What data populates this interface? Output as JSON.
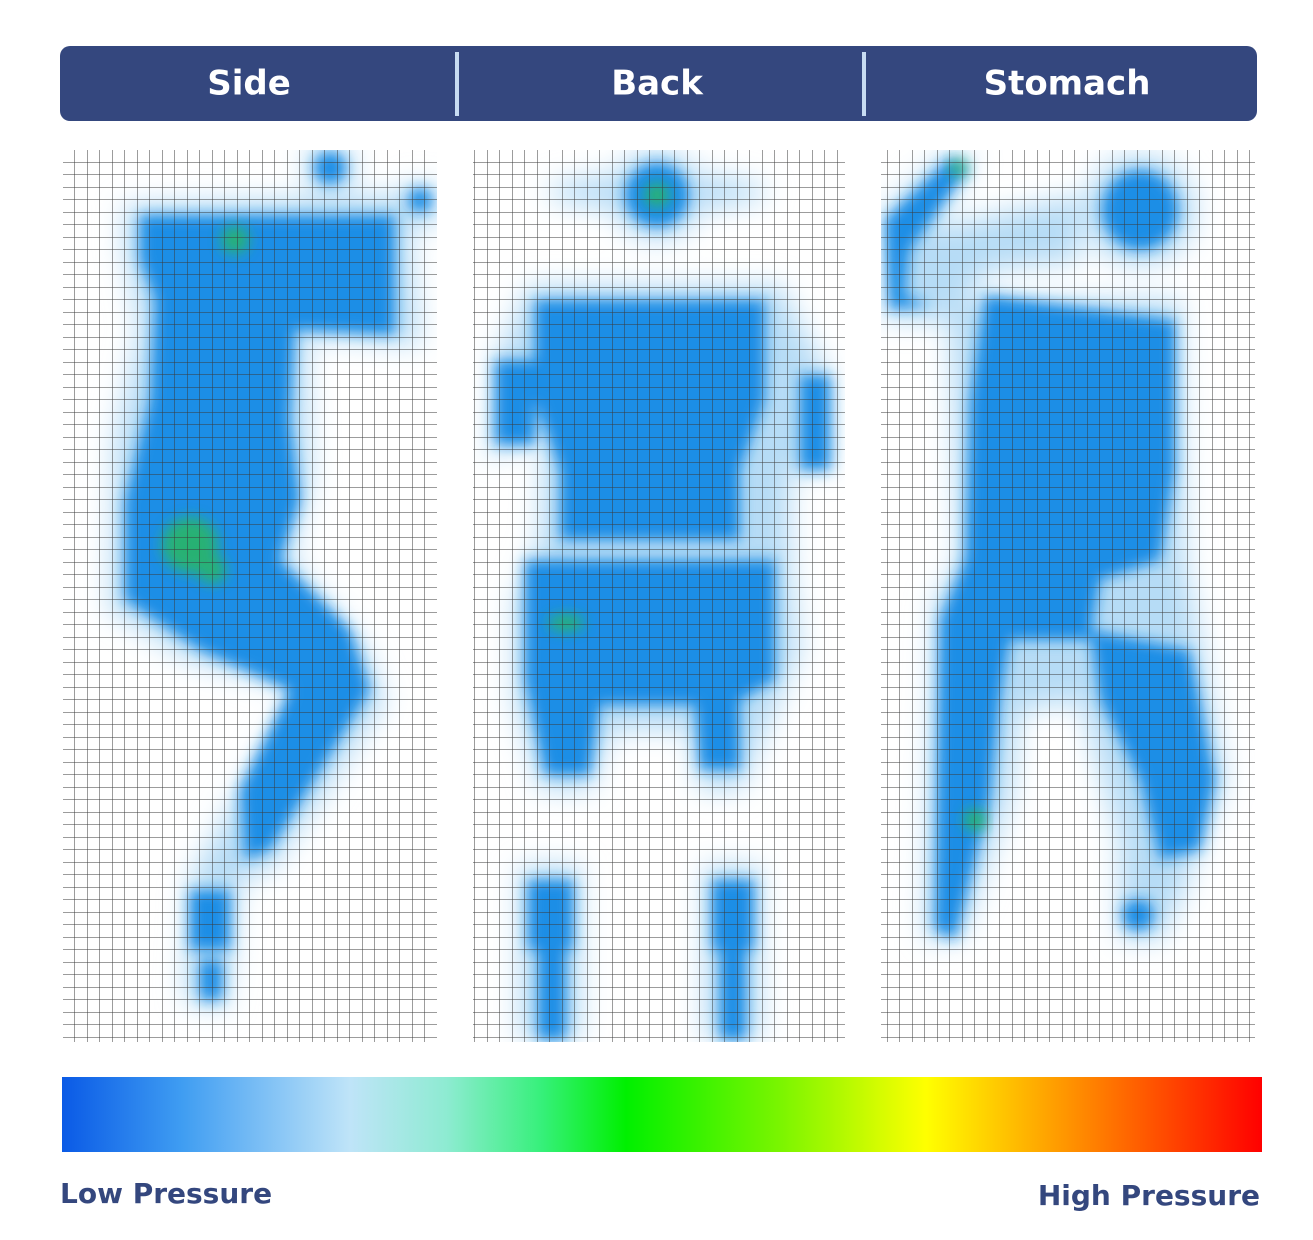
{
  "tabs": [
    "Side",
    "Back",
    "Stomach"
  ],
  "legend": {
    "low": "Low Pressure",
    "high": "High Pressure"
  }
}
